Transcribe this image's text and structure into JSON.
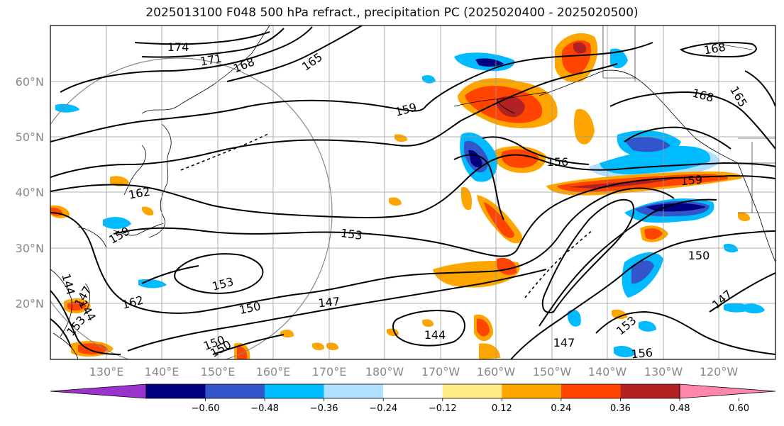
{
  "title": "2025013100 F048 500 hPa refract., precipitation PC (2025020400 - 2025020500)",
  "map": {
    "lat_labels": [
      "60°N",
      "50°N",
      "40°N",
      "30°N",
      "20°N"
    ],
    "lon_labels": [
      "130°E",
      "140°E",
      "150°E",
      "160°E",
      "170°E",
      "180°W",
      "170°W",
      "160°W",
      "150°W",
      "140°W",
      "130°W",
      "120°W"
    ],
    "contour_labels": [
      {
        "text": "174"
      },
      {
        "text": "171"
      },
      {
        "text": "168"
      },
      {
        "text": "165"
      },
      {
        "text": "159"
      },
      {
        "text": "162"
      },
      {
        "text": "159"
      },
      {
        "text": "153"
      },
      {
        "text": "153"
      },
      {
        "text": "150"
      },
      {
        "text": "162"
      },
      {
        "text": "147"
      },
      {
        "text": "144"
      },
      {
        "text": "147"
      },
      {
        "text": "150"
      },
      {
        "text": "144"
      },
      {
        "text": "147"
      },
      {
        "text": "153"
      },
      {
        "text": "156"
      },
      {
        "text": "156"
      },
      {
        "text": "159"
      },
      {
        "text": "150"
      },
      {
        "text": "147"
      },
      {
        "text": "168"
      },
      {
        "text": "165"
      },
      {
        "text": "168"
      },
      {
        "text": "150"
      },
      {
        "text": "144"
      },
      {
        "text": "153"
      }
    ]
  },
  "colorbar": {
    "ticks": [
      "−0.60",
      "−0.48",
      "−0.36",
      "−0.24",
      "−0.12",
      "0.12",
      "0.24",
      "0.36",
      "0.48",
      "0.60"
    ],
    "colors": [
      "#9933cc",
      "#000080",
      "#3355cc",
      "#00bbff",
      "#b0e0ff",
      "#ffffff",
      "#ffee88",
      "#ffa500",
      "#ff4400",
      "#b22222",
      "#ff88aa"
    ]
  }
}
